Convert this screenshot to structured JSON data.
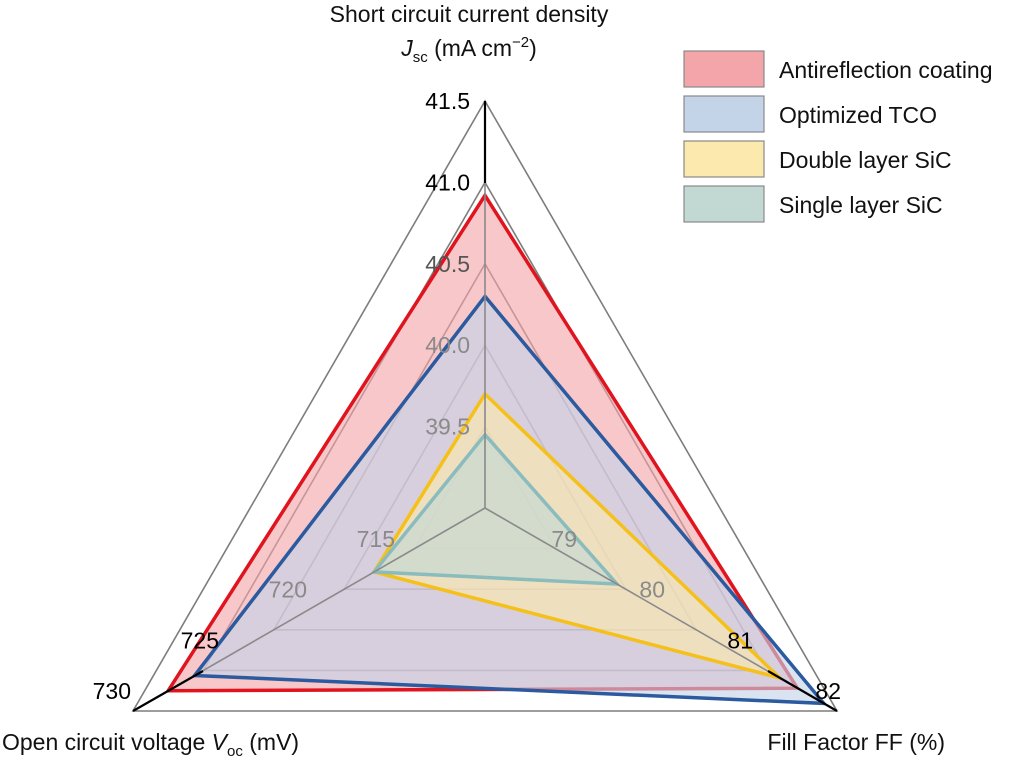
{
  "chart_data": {
    "type": "radar",
    "axes": [
      {
        "key": "jsc",
        "title_line1": "Short circuit current density",
        "title_symbol": "J",
        "title_sub": "sc",
        "title_unit_pre": " (mA cm",
        "title_sup": "−2",
        "title_unit_post": ")",
        "min": 39.0,
        "max": 41.5,
        "ticks": [
          "39.5",
          "40.0",
          "40.5",
          "41.0",
          "41.5"
        ]
      },
      {
        "key": "ff",
        "title": "Fill Factor FF (%)",
        "min": 78,
        "max": 82,
        "ticks": [
          "79",
          "80",
          "81",
          "82"
        ]
      },
      {
        "key": "voc",
        "title_pre": "Open circuit voltage ",
        "title_symbol": "V",
        "title_sub": "oc",
        "title_unit": " (mV)",
        "min": 710,
        "max": 730,
        "ticks": [
          "715",
          "720",
          "725",
          "730"
        ]
      }
    ],
    "series": [
      {
        "name": "Antireflection coating",
        "jsc": 40.92,
        "ff": 81.55,
        "voc": 728.0,
        "fill": "#f4a5aa",
        "stroke": "#e0141e"
      },
      {
        "name": "Optimized TCO",
        "jsc": 40.3,
        "ff": 81.85,
        "voc": 726.5,
        "fill": "#c3d3e8",
        "stroke": "#2c5a9e"
      },
      {
        "name": "Double layer SiC",
        "jsc": 39.7,
        "ff": 81.35,
        "voc": 716.3,
        "fill": "#fbe9ad",
        "stroke": "#f5c01a"
      },
      {
        "name": "Single layer SiC",
        "jsc": 39.45,
        "ff": 79.5,
        "voc": 716.3,
        "fill": "#c2d8d3",
        "stroke": "#8abbbd"
      }
    ],
    "grid": true,
    "legend": "top-right"
  }
}
